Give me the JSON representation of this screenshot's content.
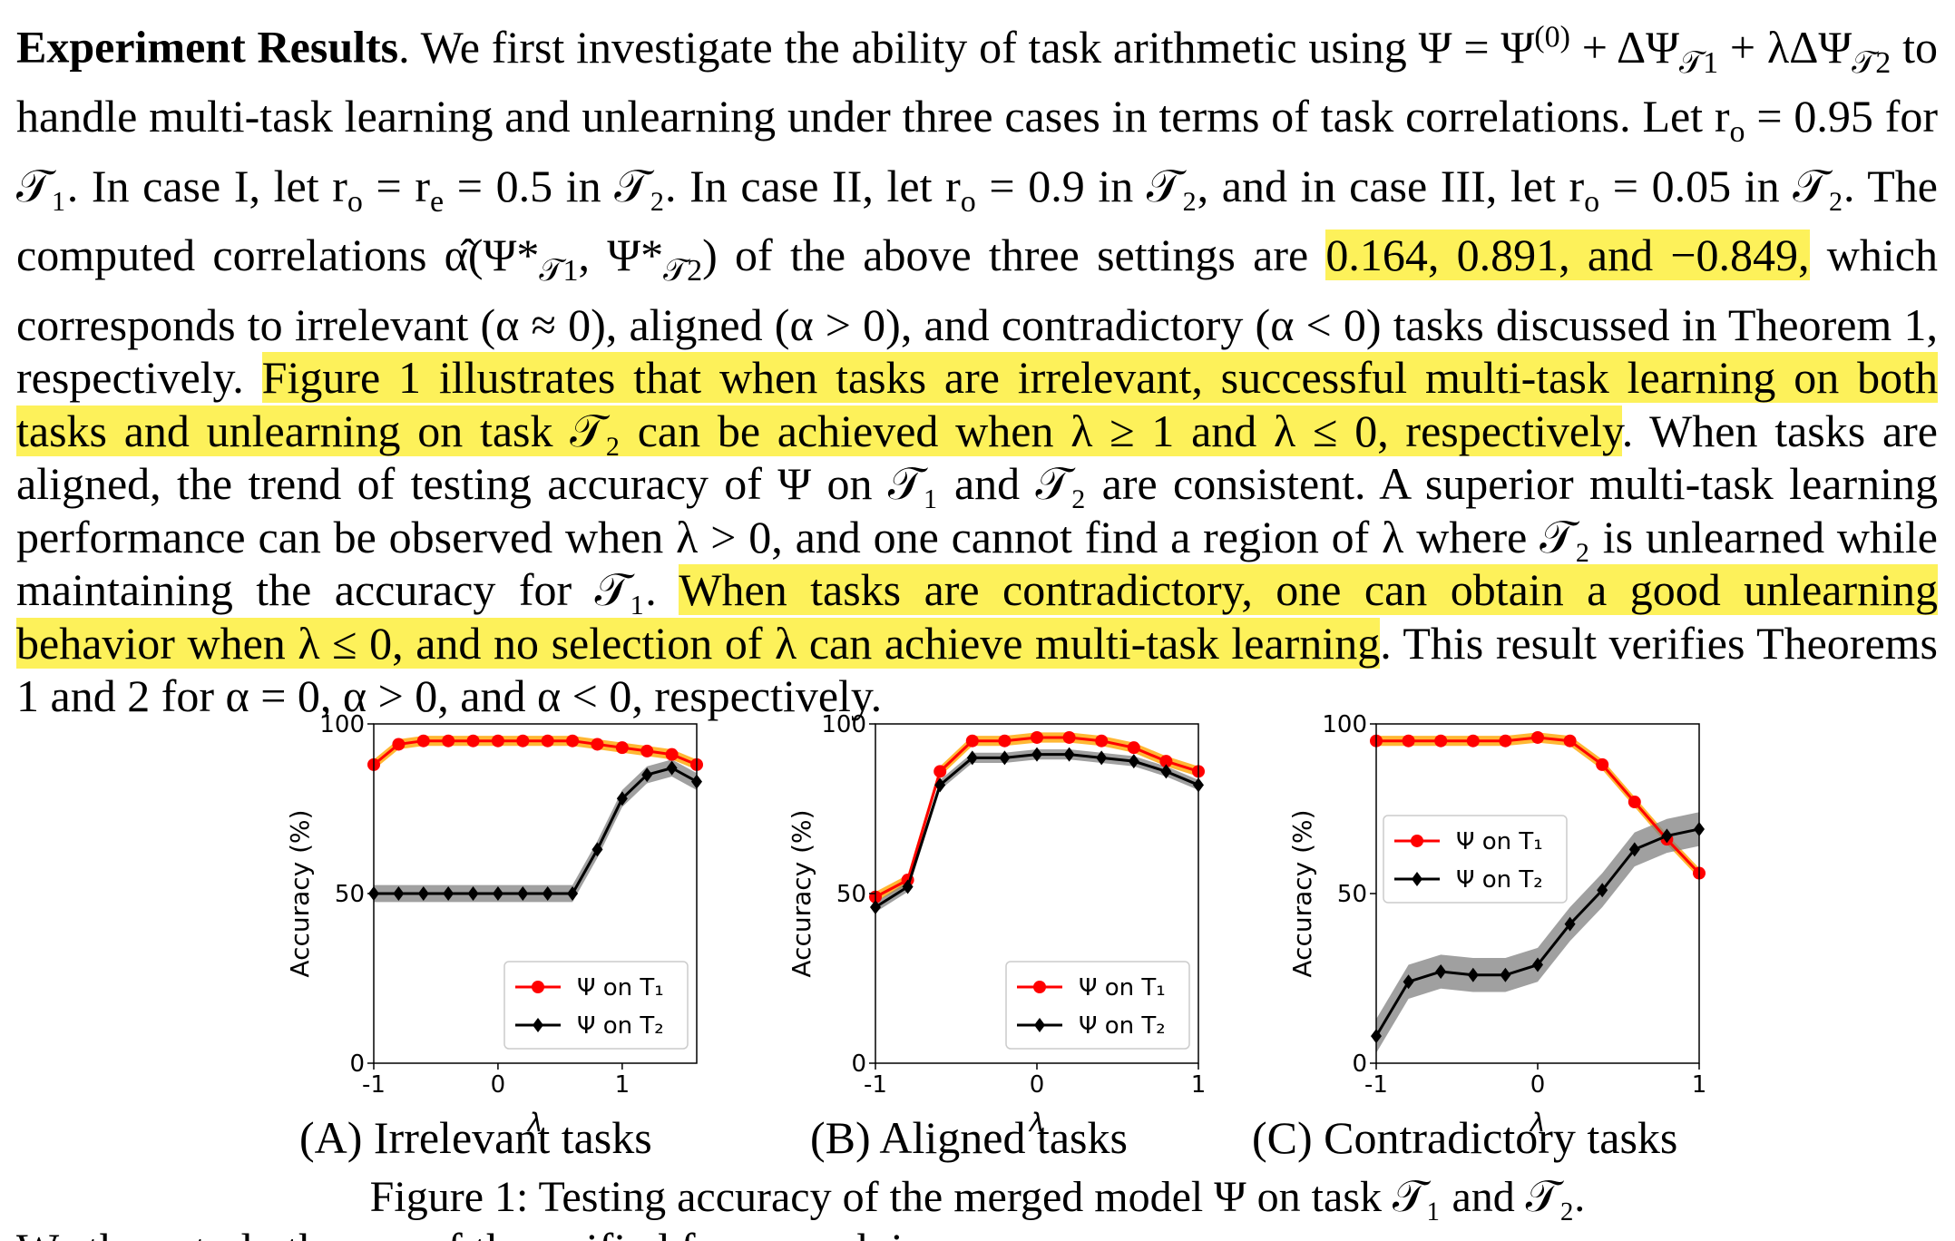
{
  "paragraph": {
    "run_in": "Experiment Results",
    "segments": [
      {
        "text": ". We first investigate the ability of task arithmetic using Ψ = Ψ",
        "hl": false
      },
      {
        "text": "(0)",
        "hl": false,
        "sup": true
      },
      {
        "text": " + ΔΨ",
        "hl": false
      },
      {
        "text": "𝒯1",
        "hl": false,
        "sub": true
      },
      {
        "text": " + λΔΨ",
        "hl": false
      },
      {
        "text": "𝒯2",
        "hl": false,
        "sub": true
      },
      {
        "text": " to handle multi-task learning and unlearning under three cases in terms of task correlations. Let r",
        "hl": false
      },
      {
        "text": "o",
        "hl": false,
        "sub": true
      },
      {
        "text": " = 0.95 for 𝒯₁. In case I, let r",
        "hl": false
      },
      {
        "text": "o",
        "hl": false,
        "sub": true
      },
      {
        "text": " = r",
        "hl": false
      },
      {
        "text": "e",
        "hl": false,
        "sub": true
      },
      {
        "text": " = 0.5 in 𝒯₂. In case II, let r",
        "hl": false
      },
      {
        "text": "o",
        "hl": false,
        "sub": true
      },
      {
        "text": " = 0.9 in 𝒯₂, and in case III, let r",
        "hl": false
      },
      {
        "text": "o",
        "hl": false,
        "sub": true
      },
      {
        "text": " = 0.05 in 𝒯₂. The computed correlations α̂(Ψ*",
        "hl": false
      },
      {
        "text": "𝒯1",
        "hl": false,
        "sub": true
      },
      {
        "text": ", Ψ*",
        "hl": false
      },
      {
        "text": "𝒯2",
        "hl": false,
        "sub": true
      },
      {
        "text": ") of the above three settings are ",
        "hl": false
      },
      {
        "text": "0.164, 0.891, and −0.849,",
        "hl": true
      },
      {
        "text": " which corresponds to irrelevant (α ≈ 0), aligned (α > 0), and contradictory (α < 0) tasks discussed in Theorem 1, respectively. ",
        "hl": false
      },
      {
        "text": "Figure 1 illustrates that when tasks are irrelevant, successful multi-task learning on both tasks and unlearning on task 𝒯₂ can be achieved when λ ≥ 1 and λ ≤ 0, respectively",
        "hl": true
      },
      {
        "text": ". When tasks are aligned, the trend of testing accuracy of Ψ on 𝒯₁ and 𝒯₂ are consistent. A superior multi-task learning performance can be observed when λ > 0, and one cannot find a region of λ where 𝒯₂ is unlearned while maintaining the accuracy for 𝒯₁. ",
        "hl": false
      },
      {
        "text": "When tasks are contradictory, one can obtain a good unlearning behavior when λ ≤ 0, and no selection of λ can achieve multi-task learning",
        "hl": true
      },
      {
        "text": ". This result verifies Theorems 1 and 2 for α = 0, α > 0, and α < 0, respectively.",
        "hl": false
      }
    ]
  },
  "cutoff_line": "We then study the use of the unified framework in a cross-...",
  "colors": {
    "highlight": "#fdf15a",
    "t1_line": "#ff0000",
    "t1_band": "#ffa500",
    "t2_line": "#000000",
    "t2_band": "#808080"
  },
  "chart_data": [
    {
      "type": "line",
      "xlabel": "λ",
      "ylabel": "Accuracy (%)",
      "xlim": [
        -1,
        1.6
      ],
      "ylim": [
        0,
        100
      ],
      "xticks": [
        "-1",
        "0",
        "1"
      ],
      "yticks": [
        "0",
        "50",
        "100"
      ],
      "legend": "lower-right",
      "x": [
        -1.0,
        -0.8,
        -0.6,
        -0.4,
        -0.2,
        0.0,
        0.2,
        0.4,
        0.6,
        0.8,
        1.0,
        1.2,
        1.4,
        1.6
      ],
      "series": [
        {
          "name": "Ψ on T₁",
          "marker": "circle",
          "values": [
            88,
            94,
            95,
            95,
            95,
            95,
            95,
            95,
            95,
            94,
            93,
            92,
            91,
            88
          ],
          "band": 1.5
        },
        {
          "name": "Ψ on T₂",
          "marker": "diamond",
          "values": [
            50,
            50,
            50,
            50,
            50,
            50,
            50,
            50,
            50,
            63,
            78,
            85,
            87,
            83
          ],
          "band": 2.5
        }
      ],
      "subcaption": "(A) Irrelevant tasks"
    },
    {
      "type": "line",
      "xlabel": "λ",
      "ylabel": "Accuracy (%)",
      "xlim": [
        -1,
        1
      ],
      "ylim": [
        0,
        100
      ],
      "xticks": [
        "-1",
        "0",
        "1"
      ],
      "yticks": [
        "0",
        "50",
        "100"
      ],
      "legend": "lower-right",
      "x": [
        -1.0,
        -0.8,
        -0.6,
        -0.4,
        -0.2,
        0.0,
        0.2,
        0.4,
        0.6,
        0.8,
        1.0
      ],
      "series": [
        {
          "name": "Ψ on T₁",
          "marker": "circle",
          "values": [
            49,
            54,
            86,
            95,
            95,
            96,
            96,
            95,
            93,
            89,
            86
          ],
          "band": 1.5
        },
        {
          "name": "Ψ on T₂",
          "marker": "diamond",
          "values": [
            46,
            52,
            82,
            90,
            90,
            91,
            91,
            90,
            89,
            86,
            82
          ],
          "band": 1.5
        }
      ],
      "subcaption": "(B) Aligned tasks"
    },
    {
      "type": "line",
      "xlabel": "λ",
      "ylabel": "Accuracy (%)",
      "xlim": [
        -1,
        1
      ],
      "ylim": [
        0,
        100
      ],
      "xticks": [
        "-1",
        "0",
        "1"
      ],
      "yticks": [
        "0",
        "50",
        "100"
      ],
      "legend": "center-left",
      "x": [
        -1.0,
        -0.8,
        -0.6,
        -0.4,
        -0.2,
        0.0,
        0.2,
        0.4,
        0.6,
        0.8,
        1.0
      ],
      "series": [
        {
          "name": "Ψ on T₁",
          "marker": "circle",
          "values": [
            95,
            95,
            95,
            95,
            95,
            96,
            95,
            88,
            77,
            66,
            56
          ],
          "band": 1.5
        },
        {
          "name": "Ψ on T₂",
          "marker": "diamond",
          "values": [
            8,
            24,
            27,
            26,
            26,
            29,
            41,
            51,
            63,
            67,
            69
          ],
          "band": 5
        }
      ],
      "subcaption": "(C) Contradictory tasks"
    }
  ],
  "figure_caption": "Figure 1: Testing accuracy of the merged model Ψ on task 𝒯₁ and 𝒯₂."
}
